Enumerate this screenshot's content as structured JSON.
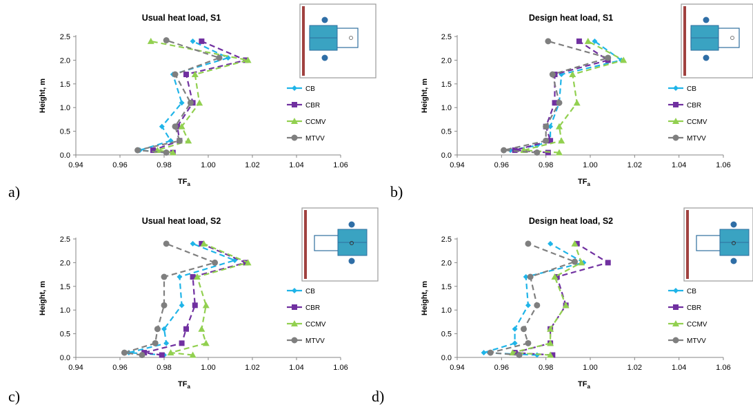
{
  "colors": {
    "CB": "#1fb4e8",
    "CBR": "#7030a0",
    "CCMV": "#92d050",
    "MTVV": "#7f7f7f",
    "wall": "#a0413f",
    "box_fill": "#3aa3c2",
    "box_stroke": "#2e6e9e",
    "circle": "#2f6ea6"
  },
  "panel_labels": [
    "a)",
    "b)",
    "c)",
    "d)"
  ],
  "chart_data": [
    {
      "type": "line",
      "title": "Usual heat load, S1",
      "ylabel": "Height, m",
      "xlabel_main": "TF",
      "xlabel_sub": "a",
      "xlim": [
        0.94,
        1.06
      ],
      "ylim": [
        0.0,
        2.5
      ],
      "xticks": [
        "0.94",
        "0.96",
        "0.98",
        "1.00",
        "1.02",
        "1.04",
        "1.06"
      ],
      "yticks": [
        "0.0",
        "0.5",
        "1.0",
        "1.5",
        "2.0",
        "2.5"
      ],
      "legend": [
        "CB",
        "CBR",
        "CCMV",
        "MTVV"
      ],
      "inset": "S1",
      "series": [
        {
          "name": "CB",
          "marker": "diamond",
          "points": [
            [
              0.981,
              0.05
            ],
            [
              0.969,
              0.1
            ],
            [
              0.983,
              0.3
            ],
            [
              0.979,
              0.6
            ],
            [
              0.988,
              1.1
            ],
            [
              0.984,
              1.7
            ],
            [
              1.009,
              2.05
            ],
            [
              0.993,
              2.4
            ]
          ]
        },
        {
          "name": "CBR",
          "marker": "square",
          "points": [
            [
              0.984,
              0.05
            ],
            [
              0.975,
              0.1
            ],
            [
              0.987,
              0.3
            ],
            [
              0.986,
              0.6
            ],
            [
              0.993,
              1.1
            ],
            [
              0.99,
              1.7
            ],
            [
              1.017,
              2.0
            ],
            [
              0.997,
              2.4
            ]
          ]
        },
        {
          "name": "CCMV",
          "marker": "triangle",
          "points": [
            [
              0.984,
              0.05
            ],
            [
              0.977,
              0.1
            ],
            [
              0.991,
              0.3
            ],
            [
              0.988,
              0.6
            ],
            [
              0.996,
              1.1
            ],
            [
              0.994,
              1.7
            ],
            [
              1.018,
              2.0
            ],
            [
              0.974,
              2.4
            ]
          ]
        },
        {
          "name": "MTVV",
          "marker": "circle",
          "points": [
            [
              0.981,
              0.05
            ],
            [
              0.968,
              0.1
            ],
            [
              0.987,
              0.3
            ],
            [
              0.985,
              0.6
            ],
            [
              0.992,
              1.1
            ],
            [
              0.985,
              1.7
            ],
            [
              1.005,
              2.05
            ],
            [
              0.981,
              2.42
            ]
          ]
        }
      ]
    },
    {
      "type": "line",
      "title": "Design heat load, S1",
      "ylabel": "Height, m",
      "xlabel_main": "TF",
      "xlabel_sub": "a",
      "xlim": [
        0.94,
        1.06
      ],
      "ylim": [
        0.0,
        2.5
      ],
      "xticks": [
        "0.94",
        "0.96",
        "0.98",
        "1.00",
        "1.02",
        "1.04",
        "1.06"
      ],
      "yticks": [
        "0.0",
        "0.5",
        "1.0",
        "1.5",
        "2.0",
        "2.5"
      ],
      "legend": [
        "CB",
        "CBR",
        "CCMV",
        "MTVV"
      ],
      "inset": "S1",
      "series": [
        {
          "name": "CB",
          "marker": "diamond",
          "points": [
            [
              0.964,
              0.1
            ],
            [
              0.976,
              0.2
            ],
            [
              0.982,
              0.3
            ],
            [
              0.982,
              0.6
            ],
            [
              0.986,
              1.1
            ],
            [
              0.987,
              1.7
            ],
            [
              1.014,
              2.0
            ],
            [
              1.002,
              2.4
            ]
          ]
        },
        {
          "name": "CBR",
          "marker": "square",
          "points": [
            [
              0.981,
              0.05
            ],
            [
              0.966,
              0.1
            ],
            [
              0.982,
              0.3
            ],
            [
              0.98,
              0.6
            ],
            [
              0.984,
              1.1
            ],
            [
              0.984,
              1.7
            ],
            [
              1.008,
              2.0
            ],
            [
              0.995,
              2.4
            ]
          ]
        },
        {
          "name": "CCMV",
          "marker": "triangle",
          "points": [
            [
              0.986,
              0.05
            ],
            [
              0.97,
              0.1
            ],
            [
              0.987,
              0.3
            ],
            [
              0.986,
              0.6
            ],
            [
              0.994,
              1.1
            ],
            [
              0.992,
              1.7
            ],
            [
              1.015,
              2.0
            ],
            [
              0.999,
              2.4
            ]
          ]
        },
        {
          "name": "MTVV",
          "marker": "circle",
          "points": [
            [
              0.976,
              0.05
            ],
            [
              0.961,
              0.1
            ],
            [
              0.98,
              0.3
            ],
            [
              0.98,
              0.6
            ],
            [
              0.986,
              1.1
            ],
            [
              0.983,
              1.7
            ],
            [
              1.008,
              2.05
            ],
            [
              0.981,
              2.4
            ]
          ]
        }
      ]
    },
    {
      "type": "line",
      "title": "Usual heat load, S2",
      "ylabel": "Height, m",
      "xlabel_main": "TF",
      "xlabel_sub": "a",
      "xlim": [
        0.94,
        1.06
      ],
      "ylim": [
        0.0,
        2.5
      ],
      "xticks": [
        "0.94",
        "0.96",
        "0.98",
        "1.00",
        "1.02",
        "1.04",
        "1.06"
      ],
      "yticks": [
        "0.0",
        "0.5",
        "1.0",
        "1.5",
        "2.0",
        "2.5"
      ],
      "legend": [
        "CB",
        "CBR",
        "CCMV",
        "MTVV"
      ],
      "inset": "S2",
      "series": [
        {
          "name": "CB",
          "marker": "diamond",
          "points": [
            [
              0.98,
              0.05
            ],
            [
              0.964,
              0.1
            ],
            [
              0.981,
              0.3
            ],
            [
              0.98,
              0.6
            ],
            [
              0.988,
              1.1
            ],
            [
              0.987,
              1.7
            ],
            [
              1.012,
              2.05
            ],
            [
              0.993,
              2.4
            ]
          ]
        },
        {
          "name": "CBR",
          "marker": "square",
          "points": [
            [
              0.979,
              0.05
            ],
            [
              0.971,
              0.1
            ],
            [
              0.988,
              0.3
            ],
            [
              0.99,
              0.6
            ],
            [
              0.994,
              1.1
            ],
            [
              0.993,
              1.7
            ],
            [
              1.017,
              2.0
            ],
            [
              0.997,
              2.4
            ]
          ]
        },
        {
          "name": "CCMV",
          "marker": "triangle",
          "points": [
            [
              0.993,
              0.05
            ],
            [
              0.983,
              0.1
            ],
            [
              0.999,
              0.3
            ],
            [
              0.997,
              0.6
            ],
            [
              0.999,
              1.1
            ],
            [
              0.995,
              1.7
            ],
            [
              1.018,
              2.0
            ],
            [
              0.998,
              2.4
            ]
          ]
        },
        {
          "name": "MTVV",
          "marker": "circle",
          "points": [
            [
              0.97,
              0.05
            ],
            [
              0.962,
              0.1
            ],
            [
              0.976,
              0.3
            ],
            [
              0.977,
              0.6
            ],
            [
              0.98,
              1.1
            ],
            [
              0.98,
              1.7
            ],
            [
              1.003,
              2.0
            ],
            [
              0.981,
              2.4
            ]
          ]
        }
      ]
    },
    {
      "type": "line",
      "title": "Design heat load, S2",
      "ylabel": "Height, m",
      "xlabel_main": "TF",
      "xlabel_sub": "a",
      "xlim": [
        0.94,
        1.06
      ],
      "ylim": [
        0.0,
        2.5
      ],
      "xticks": [
        "0.94",
        "0.96",
        "0.98",
        "1.00",
        "1.02",
        "1.04",
        "1.06"
      ],
      "yticks": [
        "0.0",
        "0.5",
        "1.0",
        "1.5",
        "2.0",
        "2.5"
      ],
      "legend": [
        "CB",
        "CBR",
        "CCMV",
        "MTVV"
      ],
      "inset": "S2",
      "series": [
        {
          "name": "CB",
          "marker": "diamond",
          "points": [
            [
              0.976,
              0.05
            ],
            [
              0.952,
              0.1
            ],
            [
              0.966,
              0.3
            ],
            [
              0.966,
              0.6
            ],
            [
              0.972,
              1.1
            ],
            [
              0.971,
              1.7
            ],
            [
              0.997,
              2.0
            ],
            [
              0.982,
              2.4
            ]
          ]
        },
        {
          "name": "CBR",
          "marker": "square",
          "points": [
            [
              0.983,
              0.05
            ],
            [
              0.966,
              0.1
            ],
            [
              0.982,
              0.3
            ],
            [
              0.982,
              0.6
            ],
            [
              0.989,
              1.1
            ],
            [
              0.985,
              1.7
            ],
            [
              1.008,
              2.0
            ],
            [
              0.994,
              2.4
            ]
          ]
        },
        {
          "name": "CCMV",
          "marker": "triangle",
          "points": [
            [
              0.982,
              0.05
            ],
            [
              0.965,
              0.1
            ],
            [
              0.982,
              0.3
            ],
            [
              0.982,
              0.6
            ],
            [
              0.989,
              1.1
            ],
            [
              0.984,
              1.7
            ],
            [
              0.996,
              2.0
            ],
            [
              0.993,
              2.4
            ]
          ]
        },
        {
          "name": "MTVV",
          "marker": "circle",
          "points": [
            [
              0.968,
              0.05
            ],
            [
              0.955,
              0.1
            ],
            [
              0.972,
              0.3
            ],
            [
              0.97,
              0.6
            ],
            [
              0.976,
              1.1
            ],
            [
              0.973,
              1.7
            ],
            [
              0.993,
              2.02
            ],
            [
              0.972,
              2.4
            ]
          ]
        }
      ]
    }
  ]
}
